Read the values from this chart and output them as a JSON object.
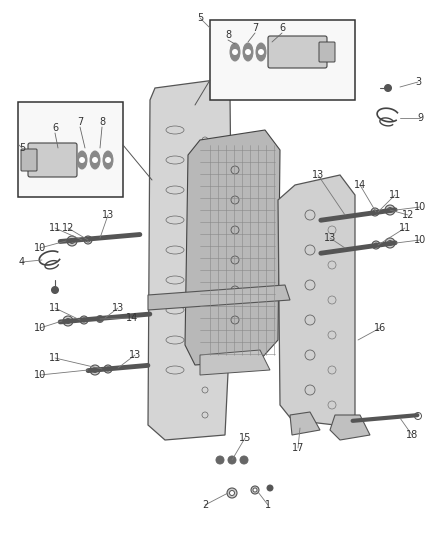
{
  "bg_color": "#ffffff",
  "fig_width": 4.38,
  "fig_height": 5.33,
  "dpi": 100,
  "line_color": "#555555",
  "dark_color": "#333333",
  "font_size": 7.0,
  "label_color": "#444444"
}
